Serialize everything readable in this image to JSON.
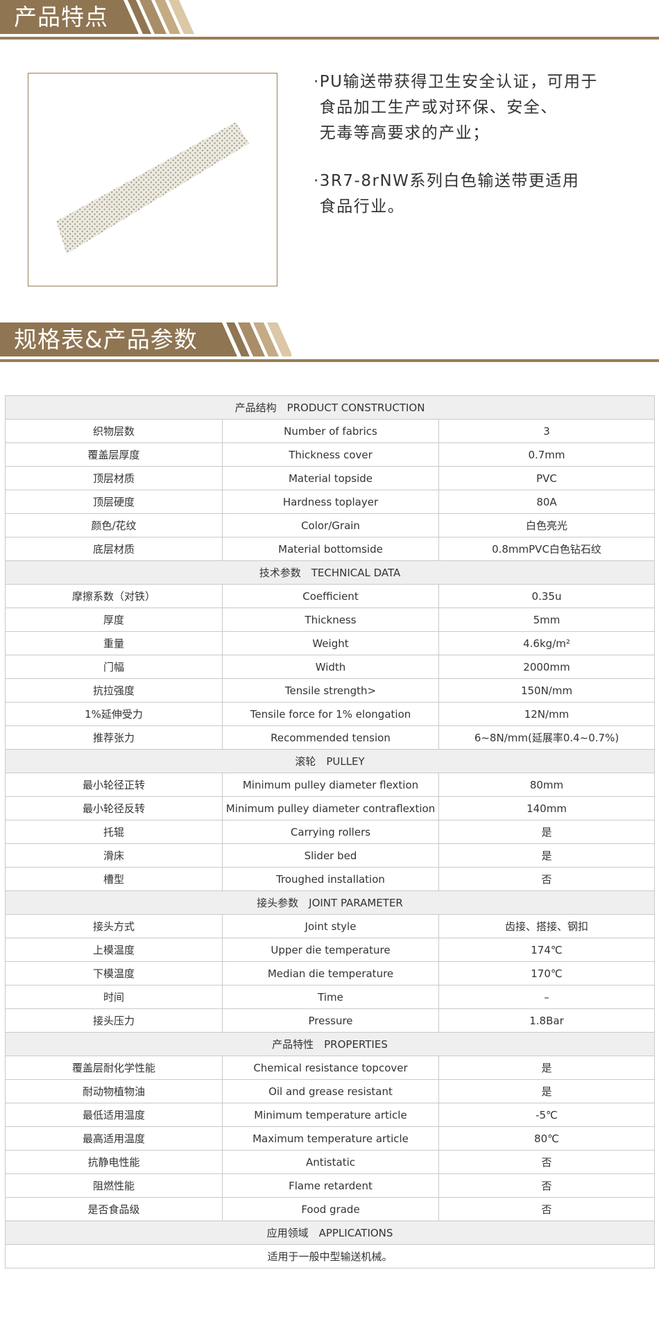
{
  "section1": {
    "title": "产品特点"
  },
  "features": [
    {
      "lines": [
        "·PU输送带获得卫生安全认证，可用于",
        " 食品加工生产或对环保、安全、",
        " 无毒等高要求的产业；"
      ]
    },
    {
      "lines": [
        "·3R7-8rNW系列白色输送带更适用",
        " 食品行业。"
      ]
    }
  ],
  "section2": {
    "title": "规格表&产品参数"
  },
  "colors": {
    "brand": "#8f7552",
    "stripe_light": "#dcc7a6",
    "header_row": "#efefef",
    "border": "#c9c9c9"
  },
  "table": [
    {
      "section": "产品结构　PRODUCT CONSTRUCTION",
      "rows": [
        [
          "织物层数",
          "Number of fabrics",
          "3"
        ],
        [
          "覆盖层厚度",
          "Thickness cover",
          "0.7mm"
        ],
        [
          "顶层材质",
          "Material topside",
          "PVC"
        ],
        [
          "顶层硬度",
          "Hardness toplayer",
          "80A"
        ],
        [
          "颜色/花纹",
          "Color/Grain",
          "白色亮光"
        ],
        [
          "底层材质",
          "Material bottomside",
          "0.8mmPVC白色钻石纹"
        ]
      ]
    },
    {
      "section": "技术参数　TECHNICAL DATA",
      "rows": [
        [
          "摩擦系数（对铁）",
          "Coefficient",
          "0.35u"
        ],
        [
          "厚度",
          "Thickness",
          "5mm"
        ],
        [
          "重量",
          "Weight",
          "4.6kg/m²"
        ],
        [
          "门幅",
          "Width",
          "2000mm"
        ],
        [
          "抗拉强度",
          "Tensile strength>",
          "150N/mm"
        ],
        [
          "1%延伸受力",
          "Tensile force for 1%  elongation",
          "12N/mm"
        ],
        [
          "推荐张力",
          "Recommended tension",
          "6~8N/mm(延展率0.4~0.7%)"
        ]
      ]
    },
    {
      "section": "滚轮　PULLEY",
      "rows": [
        [
          "最小轮径正转",
          "Minimum pulley diameter flextion",
          "80mm"
        ],
        [
          "最小轮径反转",
          "Minimum pulley diameter contraflextion",
          "140mm"
        ],
        [
          "托辊",
          "Carrying rollers",
          "是"
        ],
        [
          "滑床",
          "Slider bed",
          "是"
        ],
        [
          "槽型",
          "Troughed installation",
          "否"
        ]
      ]
    },
    {
      "section": "接头参数　JOINT PARAMETER",
      "rows": [
        [
          "接头方式",
          "Joint style",
          "齿接、搭接、钢扣"
        ],
        [
          "上模温度",
          "Upper die temperature",
          "174℃"
        ],
        [
          "下模温度",
          "Median die temperature",
          "170℃"
        ],
        [
          "时间",
          "Time",
          "–"
        ],
        [
          "接头压力",
          "Pressure",
          "1.8Bar"
        ]
      ]
    },
    {
      "section": "产品特性　PROPERTIES",
      "rows": [
        [
          "覆盖层耐化学性能",
          "Chemical resistance topcover",
          "是"
        ],
        [
          "耐动物植物油",
          "Oil and grease resistant",
          "是"
        ],
        [
          "最低适用温度",
          "Minimum temperature article",
          "-5℃"
        ],
        [
          "最高适用温度",
          "Maximum temperature article",
          "80℃"
        ],
        [
          "抗静电性能",
          "Antistatic",
          "否"
        ],
        [
          "阻燃性能",
          "Flame retardent",
          "否"
        ],
        [
          "是否食品级",
          "Food grade",
          "否"
        ]
      ]
    },
    {
      "section": "应用领域　APPLICATIONS",
      "full": "适用于一般中型输送机械。"
    }
  ]
}
